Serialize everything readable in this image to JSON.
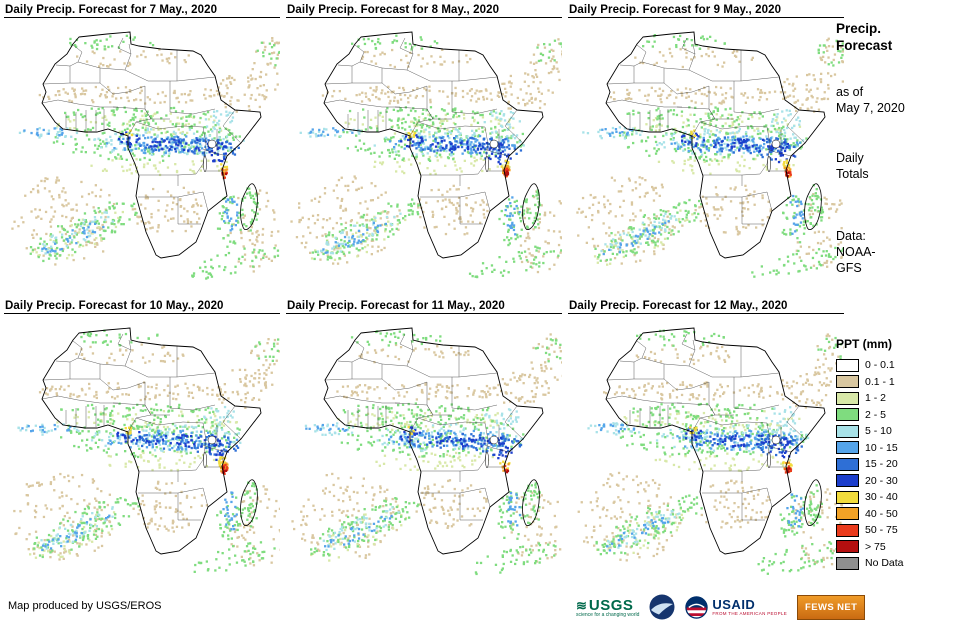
{
  "panels": [
    {
      "title": "Daily Precip. Forecast for 7 May., 2020"
    },
    {
      "title": "Daily Precip. Forecast for 8 May., 2020"
    },
    {
      "title": "Daily Precip. Forecast for 9 May., 2020"
    },
    {
      "title": "Daily Precip. Forecast for 10 May., 2020"
    },
    {
      "title": "Daily Precip. Forecast for 11 May., 2020"
    },
    {
      "title": "Daily Precip. Forecast for 12 May., 2020"
    }
  ],
  "sidebar": {
    "title_line1": "Precip.",
    "title_line2": "Forecast",
    "asof_line1": "as of",
    "asof_line2": "May 7, 2020",
    "totals_line1": "Daily",
    "totals_line2": "Totals",
    "data_line1": "Data:",
    "data_line2": "NOAA-",
    "data_line3": "GFS",
    "legend_title": "PPT (mm)",
    "legend": [
      {
        "label": "0 - 0.1",
        "color": "#ffffff"
      },
      {
        "label": "0.1 - 1",
        "color": "#d9c7a0"
      },
      {
        "label": "1 - 2",
        "color": "#d8e8a8"
      },
      {
        "label": "2 - 5",
        "color": "#7fdc7f"
      },
      {
        "label": "5 - 10",
        "color": "#a8e2e8"
      },
      {
        "label": "10 - 15",
        "color": "#55a4ea"
      },
      {
        "label": "15 - 20",
        "color": "#2e6fd6"
      },
      {
        "label": "20 - 30",
        "color": "#1c3ecc"
      },
      {
        "label": "30 - 40",
        "color": "#f2dc3c"
      },
      {
        "label": "40 - 50",
        "color": "#f2a226"
      },
      {
        "label": "50 - 75",
        "color": "#ea3b1c"
      },
      {
        "label": "> 75",
        "color": "#b40f0f"
      },
      {
        "label": "No Data",
        "color": "#8f8f8f"
      }
    ]
  },
  "footer": {
    "credit": "Map produced by USGS/EROS",
    "logos": [
      {
        "name": "USGS",
        "tagline": "science for a changing world"
      },
      {
        "name": "NOAA",
        "tagline": ""
      },
      {
        "name": "USAID",
        "tagline": "FROM THE AMERICAN PEOPLE"
      },
      {
        "name": "FEWS NET",
        "tagline": ""
      }
    ]
  }
}
